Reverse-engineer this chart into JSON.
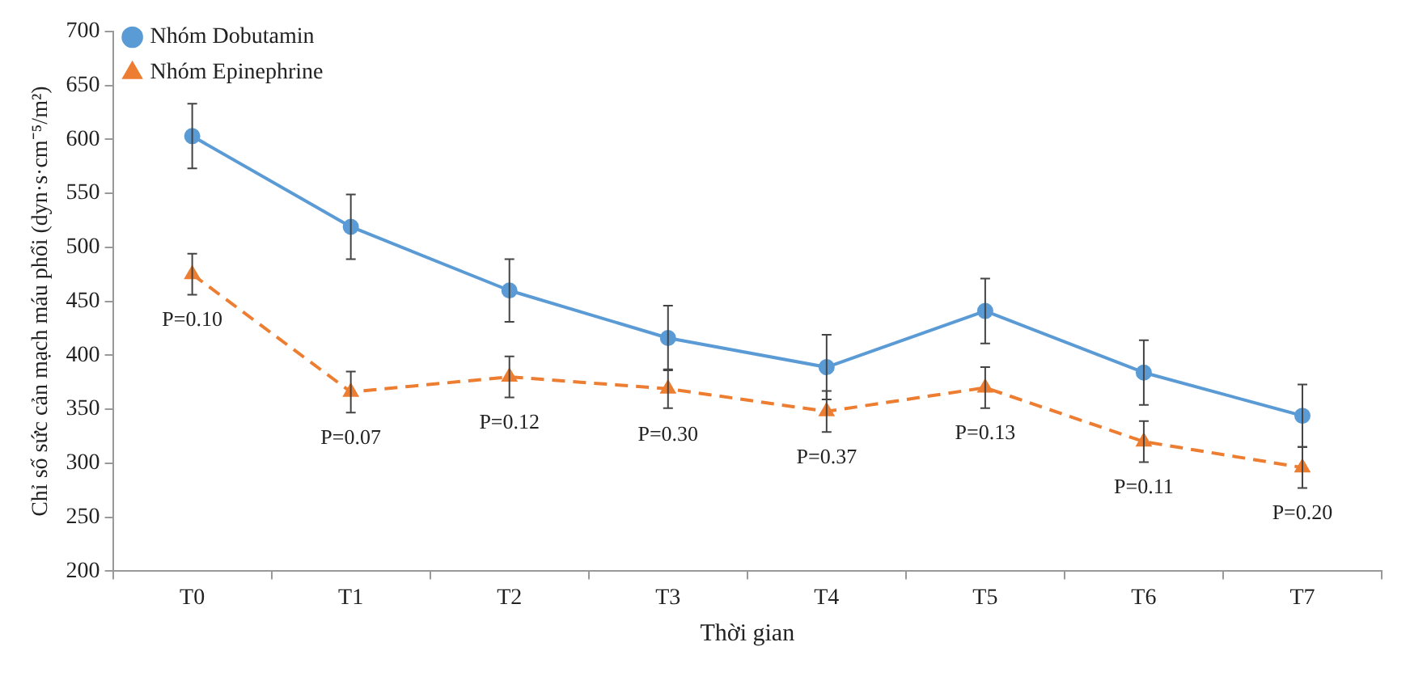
{
  "chart_data": {
    "type": "line",
    "xlabel": "Thời gian",
    "ylabel": "Chỉ số sức cản mạch máu phổi (dyn·s·cm⁻⁵/m²)",
    "categories": [
      "T0",
      "T1",
      "T2",
      "T3",
      "T4",
      "T5",
      "T6",
      "T7"
    ],
    "series": [
      {
        "name": "Nhóm Dobutamin",
        "color": "#5b9bd5",
        "values": [
          603,
          519,
          460,
          416,
          389,
          441,
          384,
          344
        ],
        "errors": [
          30,
          30,
          29,
          30,
          30,
          30,
          30,
          29
        ],
        "marker": "circle",
        "line_style": "solid"
      },
      {
        "name": "Nhóm Epinephrine",
        "color": "#ed7d31",
        "values": [
          475,
          366,
          380,
          369,
          348,
          370,
          320,
          296
        ],
        "errors": [
          19,
          19,
          19,
          18,
          19,
          19,
          19,
          19
        ],
        "marker": "triangle",
        "line_style": "dashed"
      }
    ],
    "ylim": [
      200,
      700
    ],
    "yticks": [
      200,
      250,
      300,
      350,
      400,
      450,
      500,
      550,
      600,
      650,
      700
    ],
    "grid": false,
    "legend": "top left",
    "annotations": [
      {
        "text": "P=0.10",
        "x": "T0",
        "y": 475
      },
      {
        "text": "P=0.07",
        "x": "T1",
        "y": 366
      },
      {
        "text": "P=0.12",
        "x": "T2",
        "y": 380
      },
      {
        "text": "P=0.30",
        "x": "T3",
        "y": 369
      },
      {
        "text": "P=0.37",
        "x": "T4",
        "y": 348
      },
      {
        "text": "P=0.13",
        "x": "T5",
        "y": 370
      },
      {
        "text": "P=0.11",
        "x": "T6",
        "y": 320
      },
      {
        "text": "P=0.20",
        "x": "T7",
        "y": 296
      }
    ]
  }
}
